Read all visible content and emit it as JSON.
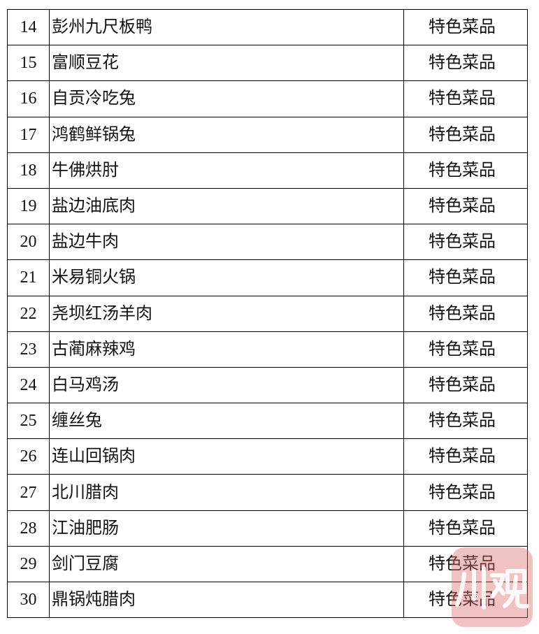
{
  "table": {
    "rows": [
      {
        "no": "14",
        "name": "彭州九尺板鸭",
        "category": "特色菜品"
      },
      {
        "no": "15",
        "name": "富顺豆花",
        "category": "特色菜品"
      },
      {
        "no": "16",
        "name": "自贡冷吃兔",
        "category": "特色菜品"
      },
      {
        "no": "17",
        "name": "鸿鹤鲜锅兔",
        "category": "特色菜品"
      },
      {
        "no": "18",
        "name": "牛佛烘肘",
        "category": "特色菜品"
      },
      {
        "no": "19",
        "name": "盐边油底肉",
        "category": "特色菜品"
      },
      {
        "no": "20",
        "name": "盐边牛肉",
        "category": "特色菜品"
      },
      {
        "no": "21",
        "name": "米易铜火锅",
        "category": "特色菜品"
      },
      {
        "no": "22",
        "name": "尧坝红汤羊肉",
        "category": "特色菜品"
      },
      {
        "no": "23",
        "name": "古蔺麻辣鸡",
        "category": "特色菜品"
      },
      {
        "no": "24",
        "name": "白马鸡汤",
        "category": "特色菜品"
      },
      {
        "no": "25",
        "name": "缠丝兔",
        "category": "特色菜品"
      },
      {
        "no": "26",
        "name": "连山回锅肉",
        "category": "特色菜品"
      },
      {
        "no": "27",
        "name": "北川腊肉",
        "category": "特色菜品"
      },
      {
        "no": "28",
        "name": "江油肥肠",
        "category": "特色菜品"
      },
      {
        "no": "29",
        "name": "剑门豆腐",
        "category": "特色菜品"
      },
      {
        "no": "30",
        "name": "鼎锅炖腊肉",
        "category": "特色菜品"
      }
    ]
  },
  "watermark": {
    "text": "川观",
    "color": "#de6e6e"
  }
}
